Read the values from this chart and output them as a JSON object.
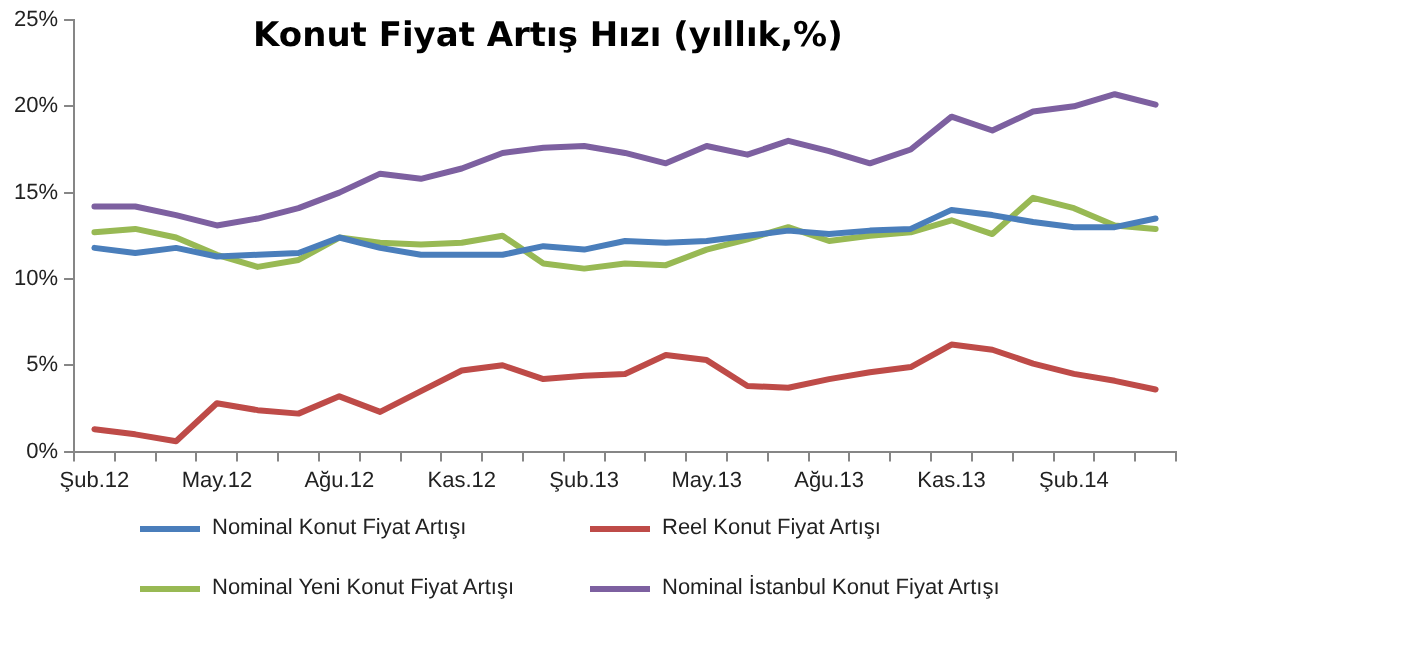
{
  "chart_data": {
    "type": "line",
    "title": "Konut Fiyat Artış Hızı (yıllık,%)",
    "categories": [
      "Şub.12",
      null,
      null,
      "May.12",
      null,
      null,
      "Ağu.12",
      null,
      null,
      "Kas.12",
      null,
      null,
      "Şub.13",
      null,
      null,
      "May.13",
      null,
      null,
      "Ağu.13",
      null,
      null,
      "Kas.13",
      null,
      null,
      "Şub.14",
      null,
      null
    ],
    "series": [
      {
        "name": "Nominal Konut Fiyat Artışı",
        "color": "#4a7ebb",
        "values": [
          11.8,
          11.5,
          11.8,
          11.3,
          11.4,
          11.5,
          12.4,
          11.8,
          11.4,
          11.4,
          11.4,
          11.9,
          11.7,
          12.2,
          12.1,
          12.2,
          12.5,
          12.8,
          12.6,
          12.8,
          12.9,
          14.0,
          13.7,
          13.3,
          13.0,
          13.0,
          13.5
        ]
      },
      {
        "name": "Reel Konut Fiyat Artışı",
        "color": "#be4b48",
        "values": [
          1.3,
          1.0,
          0.6,
          2.8,
          2.4,
          2.2,
          3.2,
          2.3,
          3.5,
          4.7,
          5.0,
          4.2,
          4.4,
          4.5,
          5.6,
          5.3,
          3.8,
          3.7,
          4.2,
          4.6,
          4.9,
          6.2,
          5.9,
          5.1,
          4.5,
          4.1,
          3.6
        ]
      },
      {
        "name": "Nominal Yeni Konut Fiyat Artışı",
        "color": "#98b954",
        "values": [
          12.7,
          12.9,
          12.4,
          11.4,
          10.7,
          11.1,
          12.4,
          12.1,
          12.0,
          12.1,
          12.5,
          10.9,
          10.6,
          10.9,
          10.8,
          11.7,
          12.3,
          13.0,
          12.2,
          12.5,
          12.7,
          13.4,
          12.6,
          14.7,
          14.1,
          13.1,
          12.9
        ]
      },
      {
        "name": "Nominal İstanbul Konut Fiyat Artışı",
        "color": "#7d60a0",
        "values": [
          14.2,
          14.2,
          13.7,
          13.1,
          13.5,
          14.1,
          15.0,
          16.1,
          15.8,
          16.4,
          17.3,
          17.6,
          17.7,
          17.3,
          16.7,
          17.7,
          17.2,
          18.0,
          17.4,
          16.7,
          17.5,
          19.4,
          18.6,
          19.7,
          20.0,
          20.7,
          20.1
        ]
      }
    ],
    "ylim": [
      0,
      25
    ],
    "yticks": [
      {
        "value": 0,
        "label": "0%"
      },
      {
        "value": 5,
        "label": "5%"
      },
      {
        "value": 10,
        "label": "10%"
      },
      {
        "value": 15,
        "label": "15%"
      },
      {
        "value": 20,
        "label": "20%"
      },
      {
        "value": 25,
        "label": "25%"
      }
    ],
    "grid": false,
    "legend": "bottom",
    "marker": "none",
    "line_style": "solid"
  }
}
